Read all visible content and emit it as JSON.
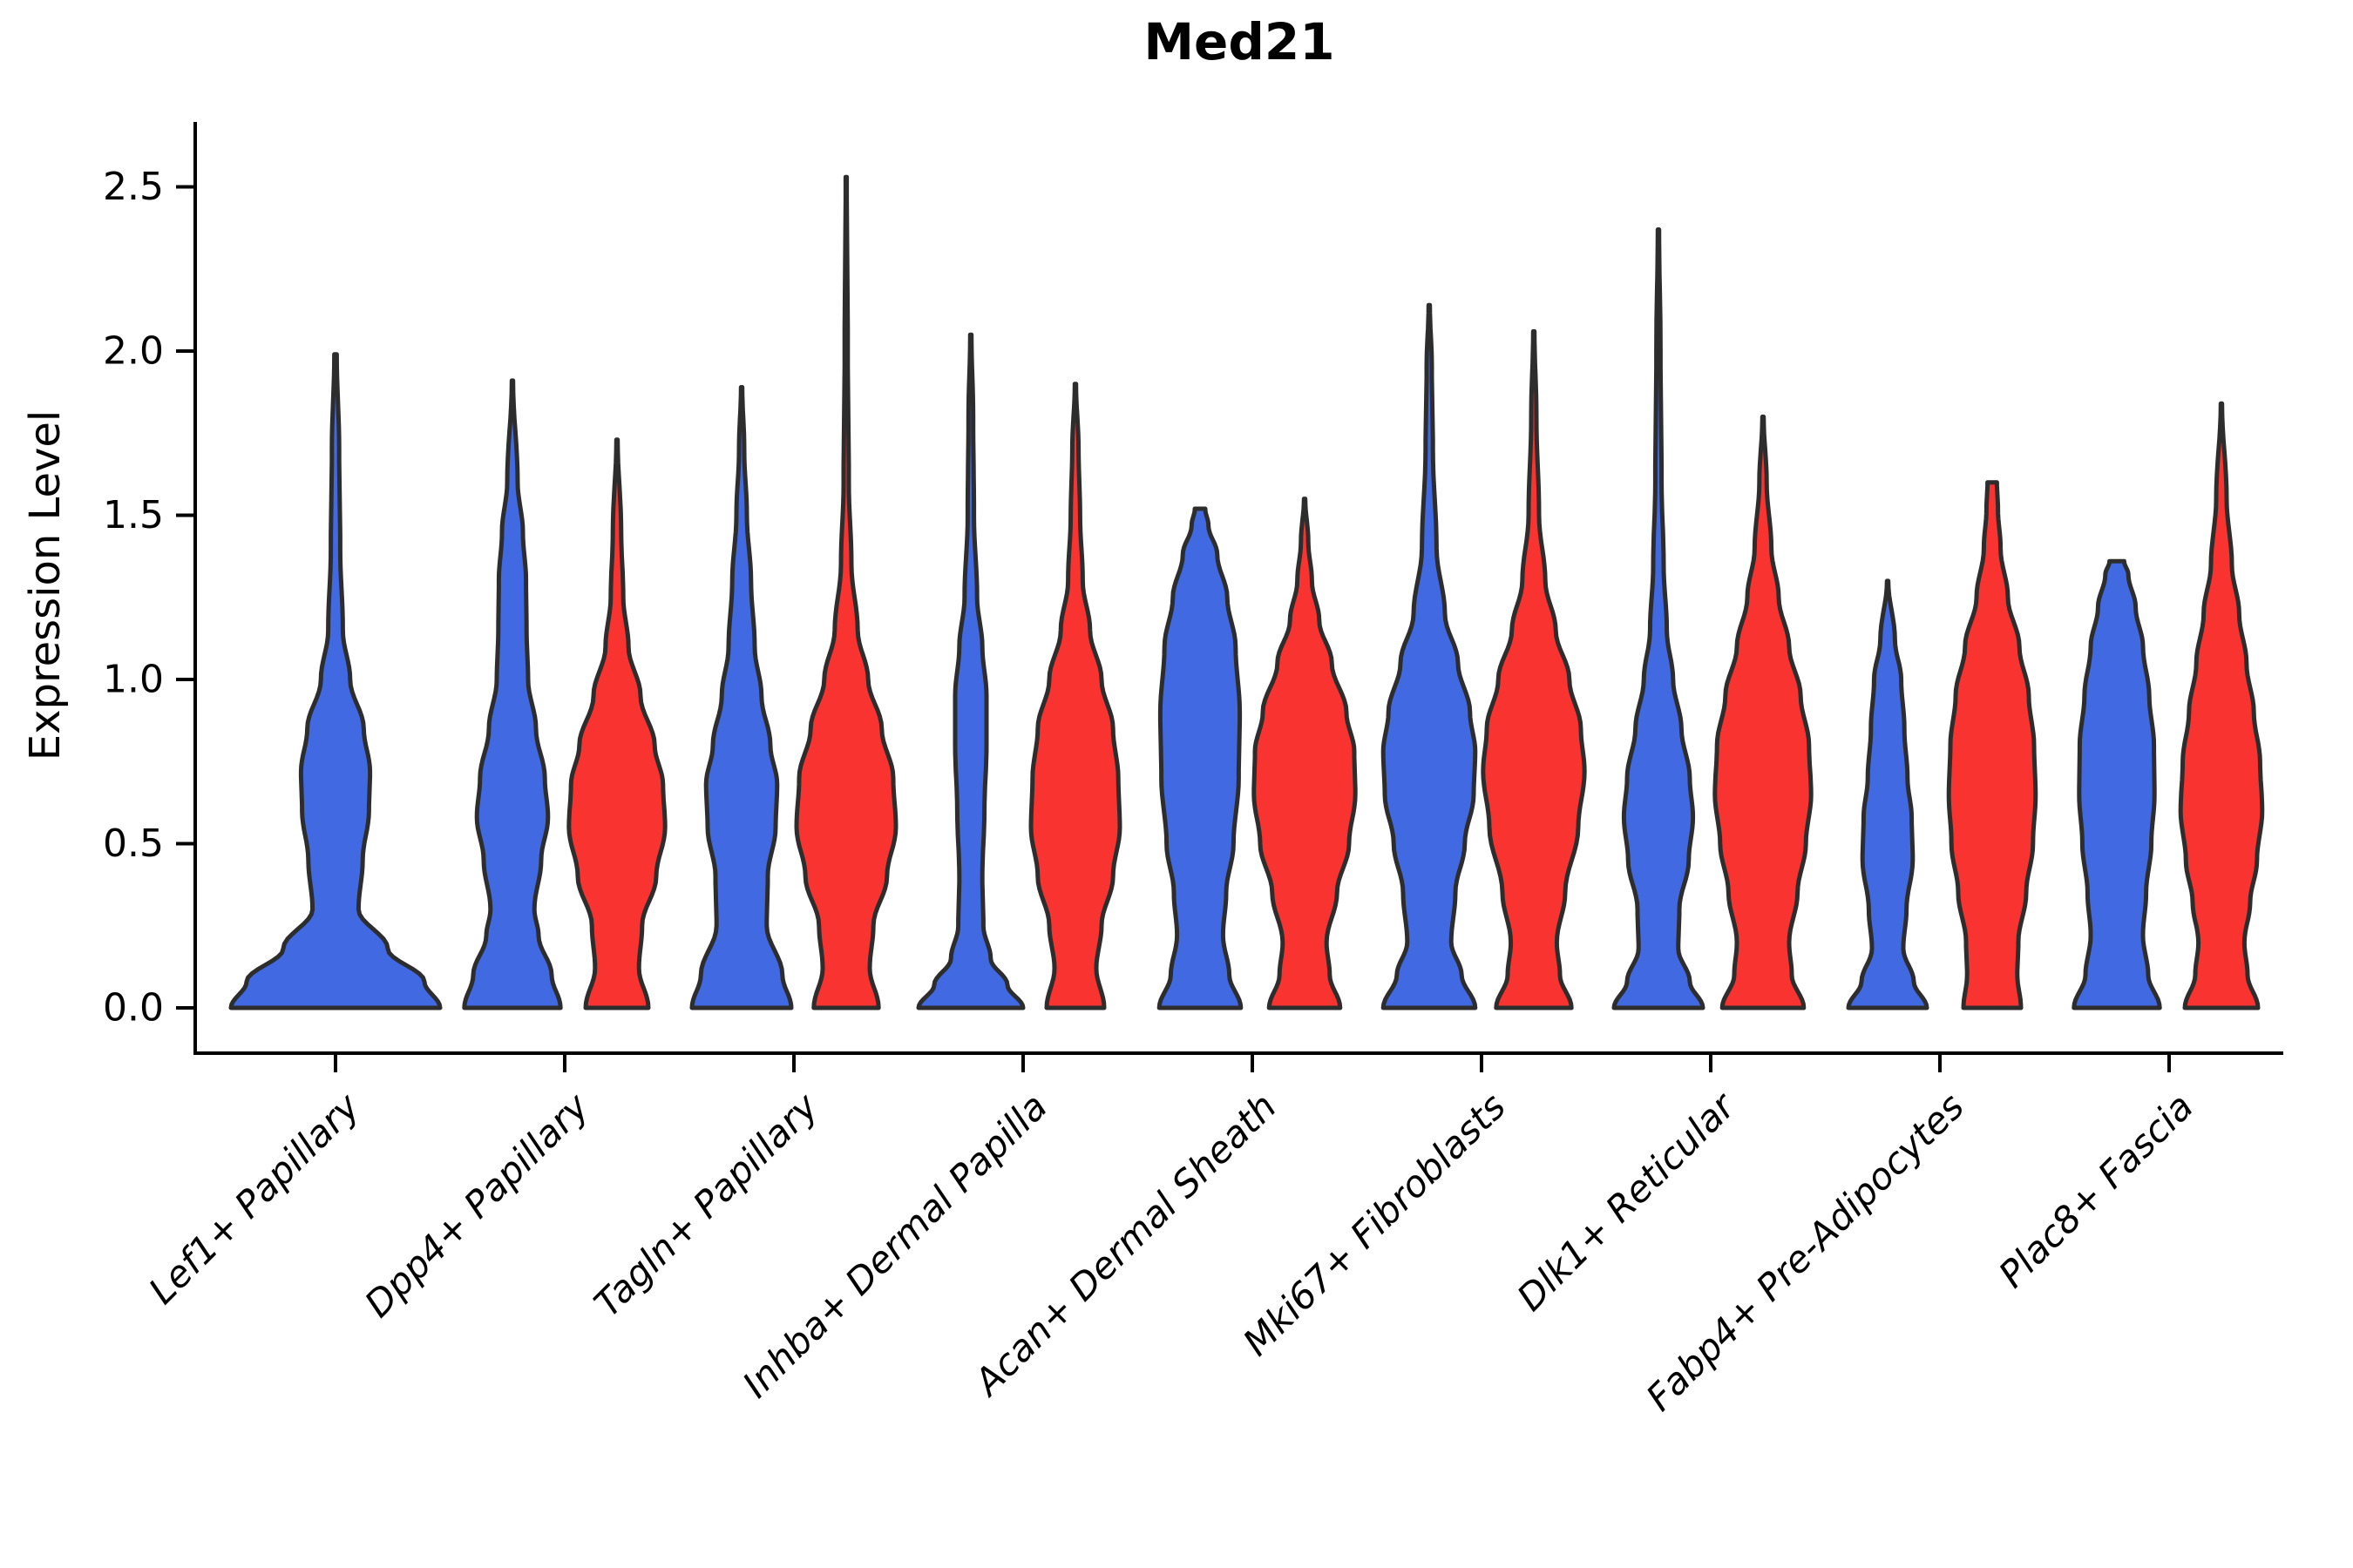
{
  "figure": {
    "title": "Med21",
    "ylabel": "Expression Level"
  },
  "chart_data": {
    "type": "violin",
    "title": "Med21",
    "xlabel": "",
    "ylabel": "Expression Level",
    "ylim": [
      0,
      2.7
    ],
    "yticks": [
      0.0,
      0.5,
      1.0,
      1.5,
      2.0,
      2.5
    ],
    "ytick_labels": [
      "0.0",
      "0.5",
      "1.0",
      "1.5",
      "2.0",
      "2.5"
    ],
    "grid": false,
    "legend": "none",
    "x_tick_rotation_deg": 45,
    "colors": {
      "blue": "#4169E1",
      "red": "#F93330",
      "outline": "#2D2D2D",
      "axis": "#000000"
    },
    "categories": [
      "Lef1+ Papillary",
      "Dpp4+ Papillary",
      "Tagln+ Papillary",
      "Inhba+ Dermal Papilla",
      "Acan+ Dermal Sheath",
      "Mki67+ Fibroblasts",
      "Dlk1+ Reticular",
      "Fabp4+ Pre-Adipocytes",
      "Plac8+ Fascia"
    ],
    "violins": [
      {
        "category": "Lef1+ Papillary",
        "hue": "blue",
        "max_expression": 1.99,
        "profile": [
          [
            0,
            1.0
          ],
          [
            0.08,
            0.85
          ],
          [
            0.18,
            0.5
          ],
          [
            0.3,
            0.22
          ],
          [
            0.45,
            0.26
          ],
          [
            0.6,
            0.32
          ],
          [
            0.72,
            0.33
          ],
          [
            0.85,
            0.27
          ],
          [
            1.0,
            0.14
          ],
          [
            1.15,
            0.07
          ],
          [
            1.4,
            0.045
          ],
          [
            1.7,
            0.035
          ],
          [
            1.99,
            0.012
          ]
        ]
      },
      {
        "category": "Dpp4+ Papillary",
        "hue": "blue",
        "max_expression": 1.91,
        "profile": [
          [
            0,
            0.92
          ],
          [
            0.1,
            0.75
          ],
          [
            0.22,
            0.5
          ],
          [
            0.3,
            0.42
          ],
          [
            0.45,
            0.55
          ],
          [
            0.58,
            0.68
          ],
          [
            0.7,
            0.62
          ],
          [
            0.85,
            0.45
          ],
          [
            1.0,
            0.3
          ],
          [
            1.15,
            0.27
          ],
          [
            1.3,
            0.26
          ],
          [
            1.45,
            0.2
          ],
          [
            1.6,
            0.1
          ],
          [
            1.91,
            0.012
          ]
        ]
      },
      {
        "category": "Dpp4+ Papillary",
        "hue": "red",
        "max_expression": 1.73,
        "profile": [
          [
            0,
            0.6
          ],
          [
            0.12,
            0.42
          ],
          [
            0.25,
            0.48
          ],
          [
            0.4,
            0.75
          ],
          [
            0.55,
            0.92
          ],
          [
            0.68,
            0.88
          ],
          [
            0.8,
            0.72
          ],
          [
            0.95,
            0.45
          ],
          [
            1.1,
            0.22
          ],
          [
            1.25,
            0.12
          ],
          [
            1.45,
            0.08
          ],
          [
            1.73,
            0.012
          ]
        ]
      },
      {
        "category": "Tagln+ Papillary",
        "hue": "blue",
        "max_expression": 1.89,
        "profile": [
          [
            0,
            0.95
          ],
          [
            0.1,
            0.78
          ],
          [
            0.25,
            0.48
          ],
          [
            0.4,
            0.5
          ],
          [
            0.55,
            0.65
          ],
          [
            0.68,
            0.68
          ],
          [
            0.8,
            0.55
          ],
          [
            0.95,
            0.38
          ],
          [
            1.1,
            0.25
          ],
          [
            1.3,
            0.18
          ],
          [
            1.5,
            0.1
          ],
          [
            1.7,
            0.05
          ],
          [
            1.89,
            0.012
          ]
        ]
      },
      {
        "category": "Tagln+ Papillary",
        "hue": "red",
        "max_expression": 2.53,
        "profile": [
          [
            0,
            0.62
          ],
          [
            0.12,
            0.45
          ],
          [
            0.25,
            0.52
          ],
          [
            0.4,
            0.78
          ],
          [
            0.55,
            0.95
          ],
          [
            0.7,
            0.9
          ],
          [
            0.85,
            0.68
          ],
          [
            1.0,
            0.42
          ],
          [
            1.15,
            0.22
          ],
          [
            1.35,
            0.1
          ],
          [
            1.6,
            0.05
          ],
          [
            2.0,
            0.03
          ],
          [
            2.53,
            0.01
          ]
        ]
      },
      {
        "category": "Inhba+ Dermal Papilla",
        "hue": "blue",
        "max_expression": 2.05,
        "profile": [
          [
            0,
            1.0
          ],
          [
            0.07,
            0.7
          ],
          [
            0.15,
            0.38
          ],
          [
            0.25,
            0.24
          ],
          [
            0.4,
            0.22
          ],
          [
            0.6,
            0.26
          ],
          [
            0.8,
            0.3
          ],
          [
            0.95,
            0.3
          ],
          [
            1.1,
            0.22
          ],
          [
            1.25,
            0.12
          ],
          [
            1.5,
            0.06
          ],
          [
            1.8,
            0.045
          ],
          [
            2.05,
            0.012
          ]
        ]
      },
      {
        "category": "Inhba+ Dermal Papilla",
        "hue": "red",
        "max_expression": 1.9,
        "profile": [
          [
            0,
            0.55
          ],
          [
            0.12,
            0.4
          ],
          [
            0.25,
            0.5
          ],
          [
            0.4,
            0.72
          ],
          [
            0.55,
            0.85
          ],
          [
            0.7,
            0.82
          ],
          [
            0.85,
            0.72
          ],
          [
            1.0,
            0.5
          ],
          [
            1.15,
            0.28
          ],
          [
            1.3,
            0.14
          ],
          [
            1.5,
            0.09
          ],
          [
            1.7,
            0.06
          ],
          [
            1.9,
            0.012
          ]
        ]
      },
      {
        "category": "Acan+ Dermal Sheath",
        "hue": "blue",
        "max_expression": 1.52,
        "profile": [
          [
            0,
            0.78
          ],
          [
            0.1,
            0.56
          ],
          [
            0.22,
            0.44
          ],
          [
            0.35,
            0.5
          ],
          [
            0.5,
            0.64
          ],
          [
            0.7,
            0.74
          ],
          [
            0.9,
            0.76
          ],
          [
            1.1,
            0.68
          ],
          [
            1.25,
            0.52
          ],
          [
            1.38,
            0.33
          ],
          [
            1.47,
            0.16
          ],
          [
            1.52,
            0.1
          ]
        ]
      },
      {
        "category": "Acan+ Dermal Sheath",
        "hue": "red",
        "max_expression": 1.55,
        "profile": [
          [
            0,
            0.68
          ],
          [
            0.1,
            0.48
          ],
          [
            0.2,
            0.42
          ],
          [
            0.35,
            0.62
          ],
          [
            0.5,
            0.85
          ],
          [
            0.65,
            0.97
          ],
          [
            0.78,
            0.95
          ],
          [
            0.9,
            0.8
          ],
          [
            1.05,
            0.52
          ],
          [
            1.18,
            0.28
          ],
          [
            1.3,
            0.14
          ],
          [
            1.42,
            0.07
          ],
          [
            1.55,
            0.012
          ]
        ]
      },
      {
        "category": "Mki67+ Fibroblasts",
        "hue": "blue",
        "max_expression": 2.14,
        "profile": [
          [
            0,
            0.88
          ],
          [
            0.1,
            0.62
          ],
          [
            0.2,
            0.42
          ],
          [
            0.35,
            0.5
          ],
          [
            0.5,
            0.68
          ],
          [
            0.65,
            0.85
          ],
          [
            0.78,
            0.88
          ],
          [
            0.9,
            0.78
          ],
          [
            1.05,
            0.55
          ],
          [
            1.2,
            0.3
          ],
          [
            1.4,
            0.14
          ],
          [
            1.7,
            0.07
          ],
          [
            1.95,
            0.05
          ],
          [
            2.14,
            0.012
          ]
        ]
      },
      {
        "category": "Mki67+ Fibroblasts",
        "hue": "red",
        "max_expression": 2.06,
        "profile": [
          [
            0,
            0.72
          ],
          [
            0.1,
            0.5
          ],
          [
            0.2,
            0.44
          ],
          [
            0.35,
            0.6
          ],
          [
            0.55,
            0.85
          ],
          [
            0.72,
            0.97
          ],
          [
            0.85,
            0.9
          ],
          [
            1.0,
            0.68
          ],
          [
            1.15,
            0.42
          ],
          [
            1.3,
            0.22
          ],
          [
            1.5,
            0.1
          ],
          [
            1.8,
            0.05
          ],
          [
            2.06,
            0.012
          ]
        ]
      },
      {
        "category": "Dlk1+ Reticular",
        "hue": "blue",
        "max_expression": 2.37,
        "profile": [
          [
            0,
            0.85
          ],
          [
            0.08,
            0.6
          ],
          [
            0.18,
            0.38
          ],
          [
            0.3,
            0.4
          ],
          [
            0.45,
            0.58
          ],
          [
            0.58,
            0.66
          ],
          [
            0.7,
            0.6
          ],
          [
            0.85,
            0.44
          ],
          [
            1.0,
            0.28
          ],
          [
            1.15,
            0.16
          ],
          [
            1.35,
            0.1
          ],
          [
            1.6,
            0.06
          ],
          [
            2.0,
            0.04
          ],
          [
            2.37,
            0.012
          ]
        ]
      },
      {
        "category": "Dlk1+ Reticular",
        "hue": "red",
        "max_expression": 1.8,
        "profile": [
          [
            0,
            0.78
          ],
          [
            0.1,
            0.55
          ],
          [
            0.2,
            0.5
          ],
          [
            0.35,
            0.66
          ],
          [
            0.5,
            0.82
          ],
          [
            0.65,
            0.92
          ],
          [
            0.8,
            0.88
          ],
          [
            0.95,
            0.72
          ],
          [
            1.1,
            0.5
          ],
          [
            1.25,
            0.3
          ],
          [
            1.4,
            0.16
          ],
          [
            1.6,
            0.07
          ],
          [
            1.8,
            0.012
          ]
        ]
      },
      {
        "category": "Fabp4+ Pre-Adipocytes",
        "hue": "blue",
        "max_expression": 1.3,
        "profile": [
          [
            0,
            0.75
          ],
          [
            0.08,
            0.5
          ],
          [
            0.18,
            0.3
          ],
          [
            0.3,
            0.36
          ],
          [
            0.45,
            0.48
          ],
          [
            0.58,
            0.46
          ],
          [
            0.7,
            0.38
          ],
          [
            0.85,
            0.32
          ],
          [
            1.0,
            0.26
          ],
          [
            1.12,
            0.14
          ],
          [
            1.3,
            0.012
          ]
        ]
      },
      {
        "category": "Fabp4+ Pre-Adipocytes",
        "hue": "red",
        "max_expression": 1.6,
        "profile": [
          [
            0,
            0.55
          ],
          [
            0.1,
            0.48
          ],
          [
            0.2,
            0.5
          ],
          [
            0.35,
            0.65
          ],
          [
            0.5,
            0.78
          ],
          [
            0.65,
            0.83
          ],
          [
            0.8,
            0.8
          ],
          [
            0.95,
            0.7
          ],
          [
            1.1,
            0.52
          ],
          [
            1.25,
            0.3
          ],
          [
            1.4,
            0.16
          ],
          [
            1.52,
            0.11
          ],
          [
            1.6,
            0.09
          ]
        ]
      },
      {
        "category": "Plac8+ Fascia",
        "hue": "blue",
        "max_expression": 1.36,
        "profile": [
          [
            0,
            0.82
          ],
          [
            0.1,
            0.6
          ],
          [
            0.22,
            0.5
          ],
          [
            0.35,
            0.56
          ],
          [
            0.5,
            0.66
          ],
          [
            0.65,
            0.72
          ],
          [
            0.8,
            0.71
          ],
          [
            0.95,
            0.62
          ],
          [
            1.1,
            0.5
          ],
          [
            1.22,
            0.36
          ],
          [
            1.32,
            0.22
          ],
          [
            1.36,
            0.14
          ]
        ]
      },
      {
        "category": "Plac8+ Fascia",
        "hue": "red",
        "max_expression": 1.84,
        "profile": [
          [
            0,
            0.7
          ],
          [
            0.1,
            0.5
          ],
          [
            0.2,
            0.44
          ],
          [
            0.32,
            0.55
          ],
          [
            0.45,
            0.68
          ],
          [
            0.6,
            0.78
          ],
          [
            0.75,
            0.74
          ],
          [
            0.9,
            0.62
          ],
          [
            1.05,
            0.48
          ],
          [
            1.2,
            0.34
          ],
          [
            1.35,
            0.2
          ],
          [
            1.55,
            0.1
          ],
          [
            1.84,
            0.012
          ]
        ]
      }
    ]
  }
}
